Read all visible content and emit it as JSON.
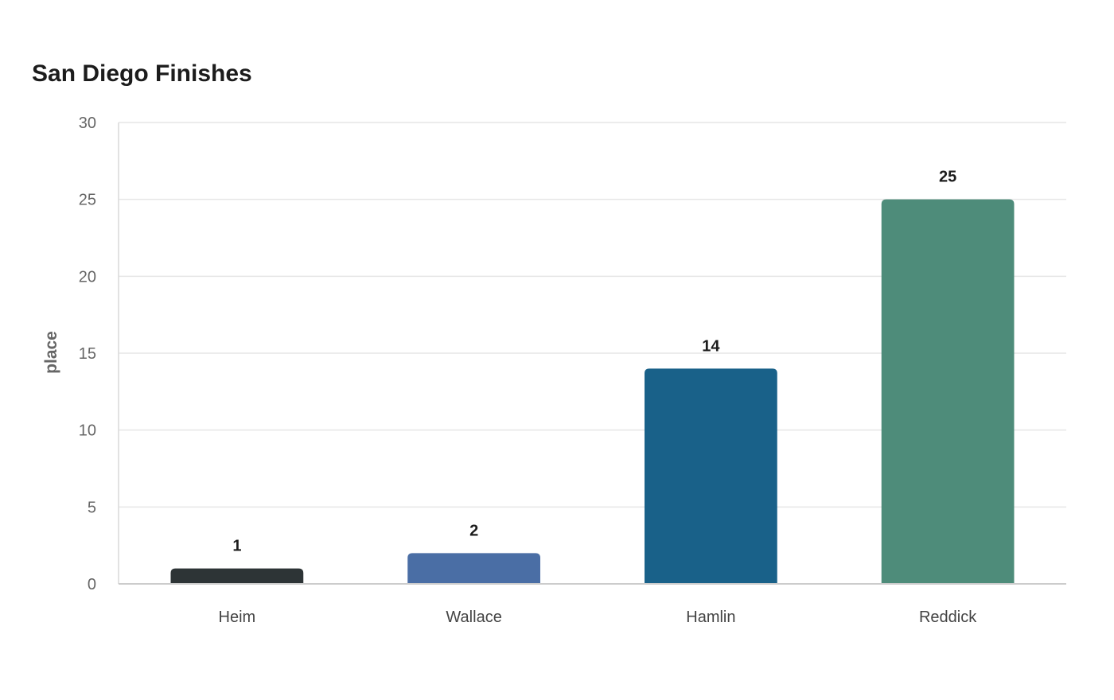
{
  "chart_data": {
    "type": "bar",
    "title": "San Diego Finishes",
    "xlabel": "",
    "ylabel": "place",
    "categories": [
      "Heim",
      "Wallace",
      "Hamlin",
      "Reddick"
    ],
    "values": [
      1,
      2,
      14,
      25
    ],
    "colors": [
      "#2d3436",
      "#4a6ea5",
      "#196189",
      "#4e8c7a"
    ],
    "ylim": [
      0,
      30
    ],
    "yticks": [
      0,
      5,
      10,
      15,
      20,
      25,
      30
    ],
    "grid": true,
    "data_labels": true
  }
}
